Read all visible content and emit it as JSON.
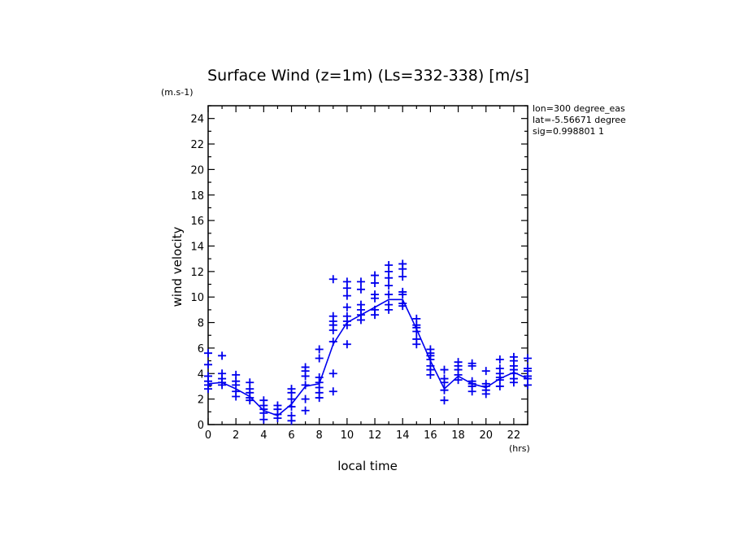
{
  "chart_data": {
    "type": "scatter",
    "title": "Surface Wind (z=1m) (Ls=332-338) [m/s]",
    "xlabel": "local time",
    "ylabel": "wind velocity",
    "x_unit": "(hrs)",
    "y_unit": "(m.s-1)",
    "xlim": [
      0,
      23
    ],
    "ylim": [
      0,
      25
    ],
    "x_ticks": [
      0,
      2,
      4,
      6,
      8,
      10,
      12,
      14,
      16,
      18,
      20,
      22
    ],
    "y_ticks": [
      0,
      2,
      4,
      6,
      8,
      10,
      12,
      14,
      16,
      18,
      20,
      22,
      24
    ],
    "info_lines": [
      "lon=300 degree_eas",
      "lat=-5.56671 degree",
      "sig=0.998801 1"
    ],
    "grid": false,
    "colors": {
      "data": "#0000ee",
      "axes": "#000000"
    },
    "series": [
      {
        "kind": "points",
        "marker": "plus",
        "points": [
          [
            0,
            5.6
          ],
          [
            0,
            4.7
          ],
          [
            0,
            3.8
          ],
          [
            0,
            3.4
          ],
          [
            0,
            3.1
          ],
          [
            0,
            2.8
          ],
          [
            1,
            5.4
          ],
          [
            1,
            4.0
          ],
          [
            1,
            3.6
          ],
          [
            1,
            3.3
          ],
          [
            1,
            3.1
          ],
          [
            2,
            3.9
          ],
          [
            2,
            3.4
          ],
          [
            2,
            3.1
          ],
          [
            2,
            2.6
          ],
          [
            2,
            2.2
          ],
          [
            3,
            3.3
          ],
          [
            3,
            2.8
          ],
          [
            3,
            2.5
          ],
          [
            3,
            2.1
          ],
          [
            3,
            1.9
          ],
          [
            4,
            1.9
          ],
          [
            4,
            1.5
          ],
          [
            4,
            1.2
          ],
          [
            4,
            0.9
          ],
          [
            4,
            0.4
          ],
          [
            5,
            1.5
          ],
          [
            5,
            1.2
          ],
          [
            5,
            0.8
          ],
          [
            5,
            0.5
          ],
          [
            6,
            2.8
          ],
          [
            6,
            2.5
          ],
          [
            6,
            2.0
          ],
          [
            6,
            1.4
          ],
          [
            6,
            0.7
          ],
          [
            6,
            0.3
          ],
          [
            7,
            4.5
          ],
          [
            7,
            4.2
          ],
          [
            7,
            3.8
          ],
          [
            7,
            3.1
          ],
          [
            7,
            2.0
          ],
          [
            7,
            1.1
          ],
          [
            8,
            5.9
          ],
          [
            8,
            5.2
          ],
          [
            8,
            3.7
          ],
          [
            8,
            3.3
          ],
          [
            8,
            2.9
          ],
          [
            8,
            2.5
          ],
          [
            8,
            2.1
          ],
          [
            9,
            11.4
          ],
          [
            9,
            8.5
          ],
          [
            9,
            8.1
          ],
          [
            9,
            7.8
          ],
          [
            9,
            7.4
          ],
          [
            9,
            6.5
          ],
          [
            9,
            4.0
          ],
          [
            9,
            2.6
          ],
          [
            10,
            11.2
          ],
          [
            10,
            10.7
          ],
          [
            10,
            10.1
          ],
          [
            10,
            9.2
          ],
          [
            10,
            8.5
          ],
          [
            10,
            8.1
          ],
          [
            10,
            7.8
          ],
          [
            10,
            6.3
          ],
          [
            11,
            11.2
          ],
          [
            11,
            10.6
          ],
          [
            11,
            9.4
          ],
          [
            11,
            9.0
          ],
          [
            11,
            8.6
          ],
          [
            11,
            8.2
          ],
          [
            12,
            11.7
          ],
          [
            12,
            11.1
          ],
          [
            12,
            10.2
          ],
          [
            12,
            9.9
          ],
          [
            12,
            9.0
          ],
          [
            12,
            8.6
          ],
          [
            13,
            12.5
          ],
          [
            13,
            12.0
          ],
          [
            13,
            11.5
          ],
          [
            13,
            10.9
          ],
          [
            13,
            10.2
          ],
          [
            13,
            9.4
          ],
          [
            13,
            9.0
          ],
          [
            14,
            12.6
          ],
          [
            14,
            12.2
          ],
          [
            14,
            11.6
          ],
          [
            14,
            10.4
          ],
          [
            14,
            10.2
          ],
          [
            14,
            9.5
          ],
          [
            14,
            9.3
          ],
          [
            15,
            8.3
          ],
          [
            15,
            7.8
          ],
          [
            15,
            7.6
          ],
          [
            15,
            7.3
          ],
          [
            15,
            6.7
          ],
          [
            15,
            6.3
          ],
          [
            16,
            5.9
          ],
          [
            16,
            5.6
          ],
          [
            16,
            5.4
          ],
          [
            16,
            5.1
          ],
          [
            16,
            4.6
          ],
          [
            16,
            4.3
          ],
          [
            16,
            3.9
          ],
          [
            17,
            4.3
          ],
          [
            17,
            3.6
          ],
          [
            17,
            3.3
          ],
          [
            17,
            2.7
          ],
          [
            17,
            1.9
          ],
          [
            18,
            4.9
          ],
          [
            18,
            4.6
          ],
          [
            18,
            4.3
          ],
          [
            18,
            3.9
          ],
          [
            18,
            3.5
          ],
          [
            19,
            4.8
          ],
          [
            19,
            4.6
          ],
          [
            19,
            3.4
          ],
          [
            19,
            3.2
          ],
          [
            19,
            3.0
          ],
          [
            19,
            2.6
          ],
          [
            20,
            4.2
          ],
          [
            20,
            3.2
          ],
          [
            20,
            3.0
          ],
          [
            20,
            2.7
          ],
          [
            20,
            2.4
          ],
          [
            21,
            5.1
          ],
          [
            21,
            4.4
          ],
          [
            21,
            4.0
          ],
          [
            21,
            3.7
          ],
          [
            21,
            3.5
          ],
          [
            21,
            3.0
          ],
          [
            22,
            5.3
          ],
          [
            22,
            5.0
          ],
          [
            22,
            4.6
          ],
          [
            22,
            4.3
          ],
          [
            22,
            4.0
          ],
          [
            22,
            3.6
          ],
          [
            22,
            3.3
          ],
          [
            23,
            5.2
          ],
          [
            23,
            4.4
          ],
          [
            23,
            4.2
          ],
          [
            23,
            3.8
          ],
          [
            23,
            3.6
          ],
          [
            23,
            3.1
          ]
        ]
      },
      {
        "kind": "line",
        "x": [
          0,
          1,
          2,
          3,
          4,
          5,
          6,
          7,
          8,
          9,
          10,
          11,
          12,
          13,
          14,
          15,
          16,
          17,
          18,
          19,
          20,
          21,
          22,
          23
        ],
        "values": [
          3.2,
          3.3,
          2.8,
          2.2,
          1.1,
          0.7,
          1.6,
          3.0,
          3.2,
          6.3,
          8.0,
          8.6,
          9.2,
          9.8,
          9.8,
          7.5,
          5.0,
          2.8,
          3.8,
          3.2,
          2.9,
          3.6,
          4.1,
          3.6
        ]
      }
    ]
  }
}
